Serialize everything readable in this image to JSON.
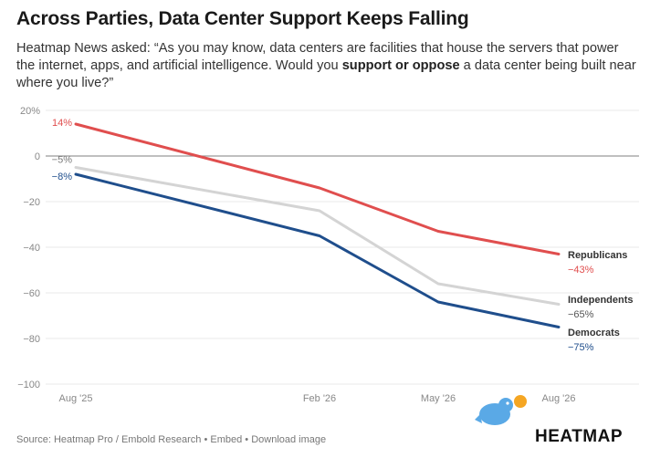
{
  "chart_data": {
    "type": "line",
    "title": "Across Parties, Data Center Support Keeps Falling",
    "subtitle_parts": [
      "Heatmap News asked: “As you may know, data centers are facilities that house the servers that power the internet, apps, and artificial intelligence. Would you ",
      "support or oppose",
      " a data center being built near where you live?”"
    ],
    "x": [
      "2025-08",
      "2026-02",
      "2026-05",
      "2026-08"
    ],
    "x_tick_labels": [
      "Aug '25",
      "Feb '26",
      "May '26",
      "Aug '26"
    ],
    "y_ticks": [
      20,
      0,
      -20,
      -40,
      -60,
      -80,
      -100
    ],
    "y_tick_labels": [
      "20%",
      "0",
      "−20",
      "−40",
      "−60",
      "−80",
      "−100"
    ],
    "ylim": [
      -100,
      20
    ],
    "grid": true,
    "series": [
      {
        "name": "Republicans",
        "values": [
          14,
          -14,
          -33,
          -43
        ],
        "color": "#e04e4e",
        "start_label": "14%",
        "end_label": "−43%"
      },
      {
        "name": "Independents",
        "values": [
          -5,
          -24,
          -56,
          -65
        ],
        "color": "#d4d4d4",
        "start_label": "−5%",
        "end_label": "−65%"
      },
      {
        "name": "Democrats",
        "values": [
          -8,
          -35,
          -64,
          -75
        ],
        "color": "#1f4e8c",
        "start_label": "−8%",
        "end_label": "−75%"
      }
    ]
  },
  "footer": {
    "source": "Source: Heatmap Pro / Embold Research",
    "sep": "•",
    "embed": "Embed",
    "download": "Download image"
  },
  "brand": "HEATMAP",
  "colors": {
    "end_label_default": "#555555",
    "grid": "#e8e8e8",
    "zero_line": "#999999"
  }
}
